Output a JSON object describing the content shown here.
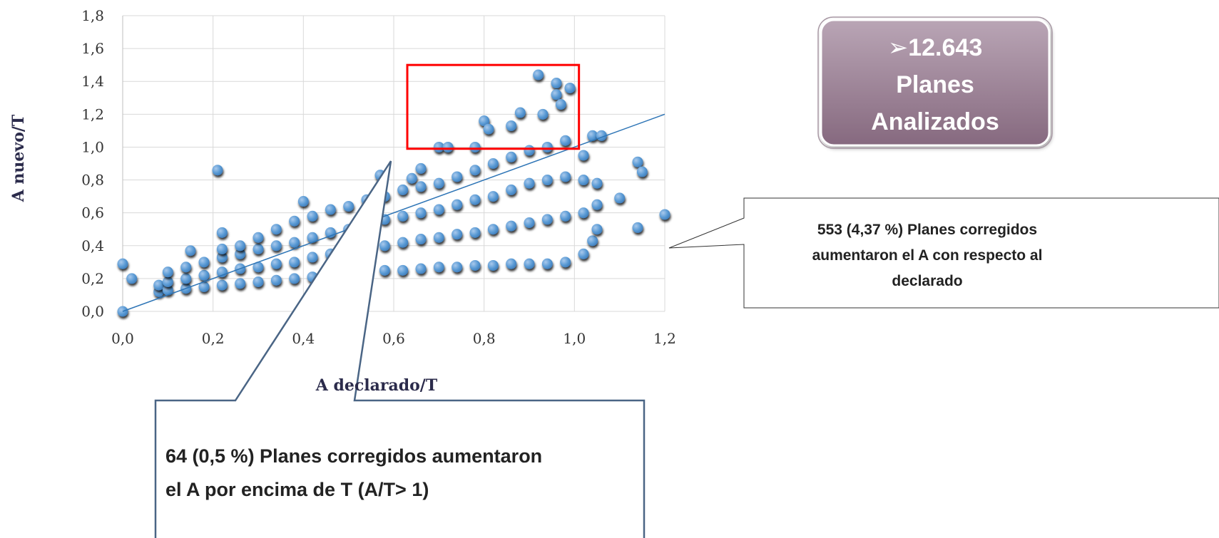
{
  "chart_data": {
    "type": "scatter",
    "x_label": "A declarado/T",
    "y_label": "A nuevo/T",
    "xlim": [
      0,
      1.2
    ],
    "ylim": [
      0,
      1.8
    ],
    "xticks": [
      {
        "value": 0,
        "label": "0,0"
      },
      {
        "value": 0.2,
        "label": "0,2"
      },
      {
        "value": 0.4,
        "label": "0,4"
      },
      {
        "value": 0.6,
        "label": "0,6"
      },
      {
        "value": 0.8,
        "label": "0,8"
      },
      {
        "value": 1.0,
        "label": "1,0"
      },
      {
        "value": 1.2,
        "label": "1,2"
      }
    ],
    "yticks": [
      {
        "value": 0,
        "label": "0,0"
      },
      {
        "value": 0.2,
        "label": "0,2"
      },
      {
        "value": 0.4,
        "label": "0,4"
      },
      {
        "value": 0.6,
        "label": "0,6"
      },
      {
        "value": 0.8,
        "label": "0,8"
      },
      {
        "value": 1.0,
        "label": "1,0"
      },
      {
        "value": 1.2,
        "label": "1,2"
      },
      {
        "value": 1.4,
        "label": "1,4"
      },
      {
        "value": 1.6,
        "label": "1,6"
      },
      {
        "value": 1.8,
        "label": "1,8"
      }
    ],
    "grid": true,
    "series": [
      {
        "color": "#5b9bd5",
        "x": [
          0,
          0.02,
          0.21,
          0.22,
          0.15,
          0.4,
          0.92,
          0.96,
          0.99,
          0.96,
          0.97,
          0.93,
          0.88,
          0.8,
          0.81,
          0.86,
          0.7,
          0.72,
          0.78,
          1.04,
          1.06,
          1.14,
          1.15,
          1.2,
          1.14,
          1.04,
          1.1,
          0.66,
          0.64,
          0.57,
          0,
          0.08,
          0.08,
          0.1,
          0.1,
          0.1,
          0.14,
          0.14,
          0.14,
          0.18,
          0.18,
          0.18,
          0.22,
          0.22,
          0.22,
          0.22,
          0.26,
          0.26,
          0.26,
          0.26,
          0.3,
          0.3,
          0.3,
          0.3,
          0.34,
          0.34,
          0.34,
          0.34,
          0.38,
          0.38,
          0.38,
          0.38,
          0.42,
          0.42,
          0.42,
          0.42,
          0.46,
          0.46,
          0.46,
          0.46,
          0.5,
          0.5,
          0.5,
          0.5,
          0.54,
          0.54,
          0.54,
          0.54,
          0.58,
          0.58,
          0.58,
          0.58,
          0.62,
          0.62,
          0.62,
          0.62,
          0.66,
          0.66,
          0.66,
          0.66,
          0.7,
          0.7,
          0.7,
          0.7,
          0.74,
          0.74,
          0.74,
          0.74,
          0.78,
          0.78,
          0.78,
          0.78,
          0.82,
          0.82,
          0.82,
          0.82,
          0.86,
          0.86,
          0.86,
          0.86,
          0.9,
          0.9,
          0.9,
          0.9,
          0.94,
          0.94,
          0.94,
          0.94,
          0.98,
          0.98,
          0.98,
          0.98,
          1.02,
          1.02,
          1.02,
          1.02,
          1.05,
          1.05,
          1.05
        ],
        "values": [
          0.29,
          0.2,
          0.86,
          0.48,
          0.37,
          0.67,
          1.44,
          1.39,
          1.36,
          1.32,
          1.26,
          1.2,
          1.21,
          1.16,
          1.11,
          1.13,
          1.0,
          1.0,
          1.0,
          1.07,
          1.07,
          0.91,
          0.85,
          0.59,
          0.51,
          0.43,
          0.69,
          0.87,
          0.81,
          0.83,
          0.0,
          0.12,
          0.16,
          0.13,
          0.18,
          0.24,
          0.14,
          0.2,
          0.27,
          0.15,
          0.22,
          0.3,
          0.16,
          0.24,
          0.33,
          0.38,
          0.17,
          0.26,
          0.35,
          0.4,
          0.18,
          0.27,
          0.38,
          0.45,
          0.19,
          0.29,
          0.4,
          0.5,
          0.2,
          0.3,
          0.42,
          0.55,
          0.21,
          0.33,
          0.45,
          0.58,
          0.22,
          0.35,
          0.48,
          0.62,
          0.23,
          0.36,
          0.5,
          0.64,
          0.24,
          0.38,
          0.53,
          0.68,
          0.25,
          0.4,
          0.56,
          0.7,
          0.25,
          0.42,
          0.58,
          0.74,
          0.26,
          0.44,
          0.6,
          0.76,
          0.27,
          0.45,
          0.62,
          0.78,
          0.27,
          0.47,
          0.65,
          0.82,
          0.28,
          0.48,
          0.68,
          0.86,
          0.28,
          0.5,
          0.7,
          0.9,
          0.29,
          0.52,
          0.74,
          0.94,
          0.29,
          0.54,
          0.78,
          0.98,
          0.29,
          0.56,
          0.8,
          1.0,
          0.3,
          0.58,
          0.82,
          1.04,
          0.35,
          0.6,
          0.8,
          0.95,
          0.5,
          0.65,
          0.78
        ]
      }
    ],
    "trendline": {
      "color": "#2e75b6",
      "x": [
        0,
        1.2
      ],
      "y": [
        0,
        1.2
      ]
    },
    "highlight_box": {
      "color": "#ff0000",
      "xlim": [
        0.63,
        1.01
      ],
      "ylim": [
        0.99,
        1.5
      ]
    },
    "summary_box": {
      "lines": [
        "➢12.643",
        "Planes",
        "Analizados"
      ]
    },
    "annotations": [
      {
        "lines": [
          "553 (4,37 %) Planes corregidos",
          "aumentaron el A con respecto al",
          "declarado"
        ]
      },
      {
        "lines": [
          "64 (0,5 %) Planes corregidos aumentaron",
          "el A por encima de T (A/T> 1)"
        ]
      }
    ]
  }
}
